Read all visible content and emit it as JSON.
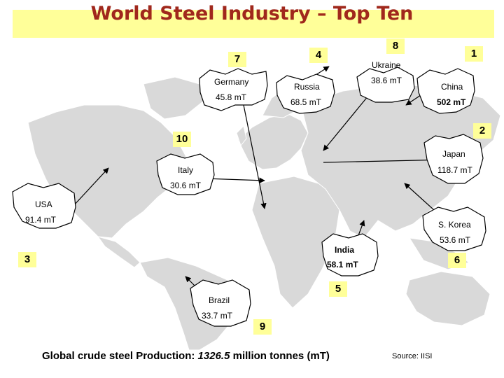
{
  "title": "World Steel Industry – Top Ten",
  "countries": [
    {
      "rank": "1",
      "name": "China",
      "value": "502 mT"
    },
    {
      "rank": "2",
      "name": "Japan",
      "value": "118.7 mT"
    },
    {
      "rank": "3",
      "name": "USA",
      "value": "91.4 mT"
    },
    {
      "rank": "4",
      "name": "Russia",
      "value": "68.5 mT"
    },
    {
      "rank": "5",
      "name": "India",
      "value": "58.1 mT"
    },
    {
      "rank": "6",
      "name": "S. Korea",
      "value": "53.6 mT"
    },
    {
      "rank": "7",
      "name": "Germany",
      "value": "45.8 mT"
    },
    {
      "rank": "8",
      "name": "Ukraine",
      "value": "38.6 mT"
    },
    {
      "rank": "9",
      "name": "Brazil",
      "value": "33.7 mT"
    },
    {
      "rank": "10",
      "name": "Italy",
      "value": "30.6 mT"
    }
  ],
  "footer": {
    "prefix": "Global crude steel Production: ",
    "value": "1326.5",
    "suffix": " million tonnes (mT)"
  },
  "source": "Source: IISI",
  "colors": {
    "title": "#a0281c",
    "highlight": "#ffff99",
    "land": "#d9d9d9"
  }
}
